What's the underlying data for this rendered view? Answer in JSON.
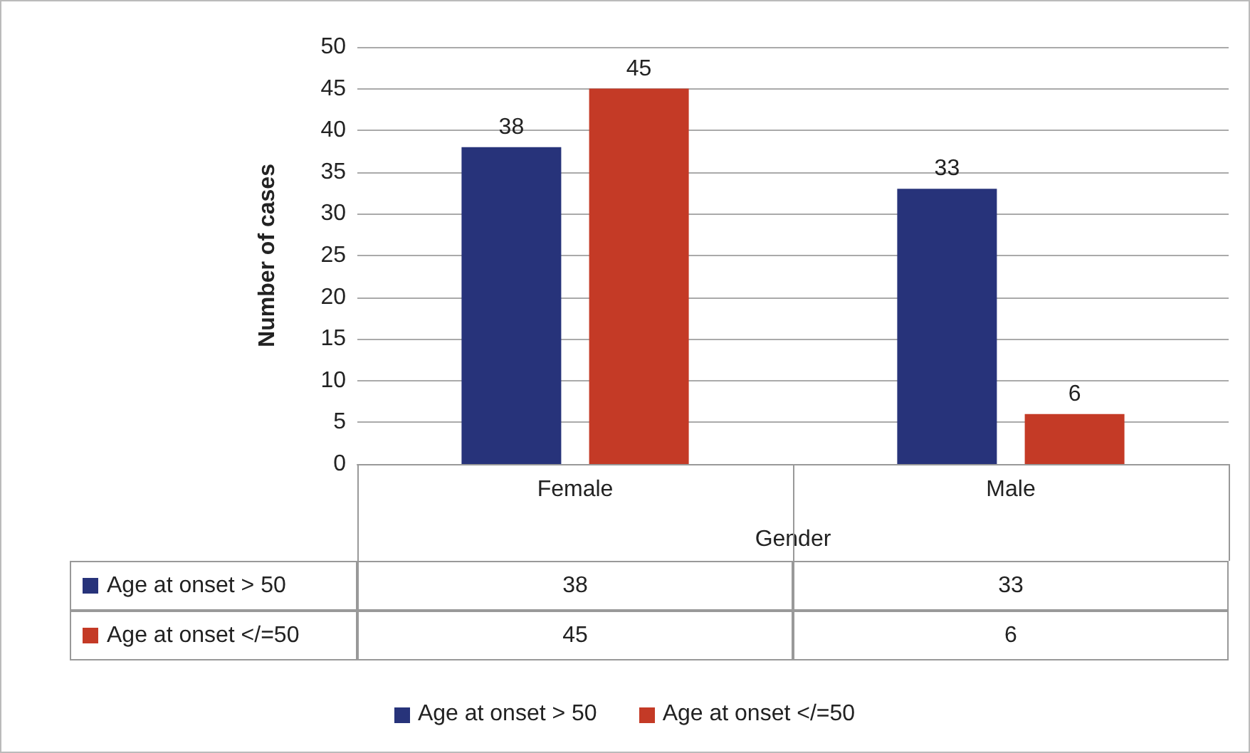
{
  "chart_data": {
    "type": "bar",
    "xlabel": "Gender",
    "ylabel": "Number of cases",
    "categories": [
      "Female",
      "Male"
    ],
    "series": [
      {
        "name": "Age at onset > 50",
        "color": "#27337a",
        "values": [
          38,
          33
        ],
        "value_labels": [
          "38",
          "33"
        ]
      },
      {
        "name": "Age at onset </=50",
        "color": "#c43a26",
        "values": [
          45,
          6
        ],
        "value_labels": [
          "45",
          "6"
        ]
      }
    ],
    "ylim": [
      0,
      50
    ],
    "yticks": [
      0,
      5,
      10,
      15,
      20,
      25,
      30,
      35,
      40,
      45,
      50
    ],
    "annotations": [
      "38",
      "33",
      "45",
      "6"
    ],
    "grid": "y",
    "legend": "bottom"
  }
}
